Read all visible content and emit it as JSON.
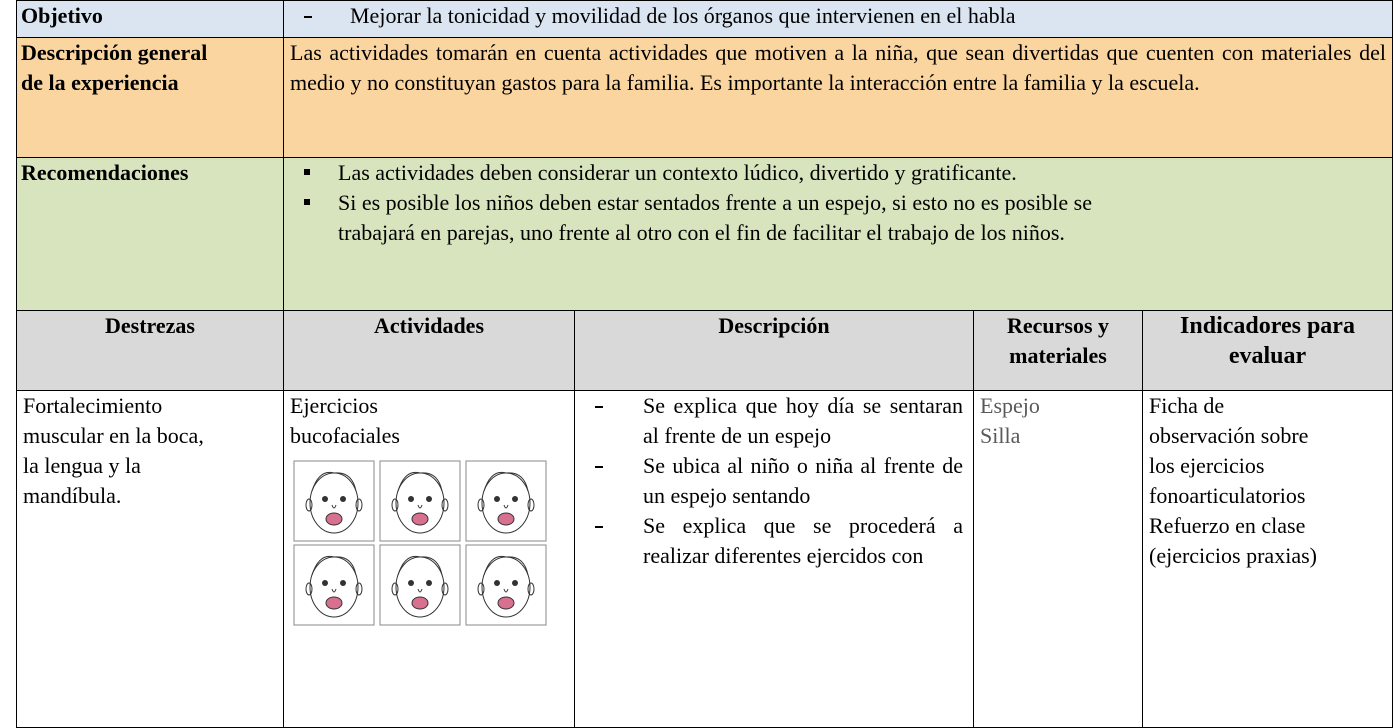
{
  "objetivo": {
    "label": "Objetivo",
    "items": [
      "Mejorar la tonicidad y movilidad de los órganos que intervienen en el habla"
    ]
  },
  "descripcion_general": {
    "label": "Descripción general de la experiencia",
    "text": "Las actividades tomarán en cuenta actividades que motiven a la niña, que sean divertidas que cuenten con materiales del medio y no constituyan gastos para la familia. Es importante la interacción entre la familia y la escuela."
  },
  "recomendaciones": {
    "label": "Recomendaciones",
    "items": [
      "Las actividades deben considerar un contexto lúdico, divertido y gratificante.",
      "Si es posible los niños deben estar sentados frente a un espejo, si esto no es posible se trabajará en parejas, uno frente al otro con el fin de facilitar el trabajo de los niños."
    ]
  },
  "table": {
    "headers": [
      "Destrezas",
      "Actividades",
      "Descripción",
      "Recursos y materiales",
      "Indicadores para evaluar"
    ],
    "rows": [
      {
        "destrezas": "Fortalecimiento muscular en la boca, la lengua y la mandíbula.",
        "actividades": "Ejercicios bucofaciales",
        "descripcion": [
          "Se explica que hoy día se sentaran al frente de un espejo",
          "Se ubica al niño o niña al frente de un espejo sentando",
          "Se explica que se procederá a realizar diferentes ejercidos con"
        ],
        "recursos": [
          "Espejo",
          "Silla"
        ],
        "indicadores": [
          "Ficha de observación sobre los ejercicios fonoarticulatorios",
          "Refuerzo en clase (ejercicios praxias)"
        ]
      }
    ]
  }
}
